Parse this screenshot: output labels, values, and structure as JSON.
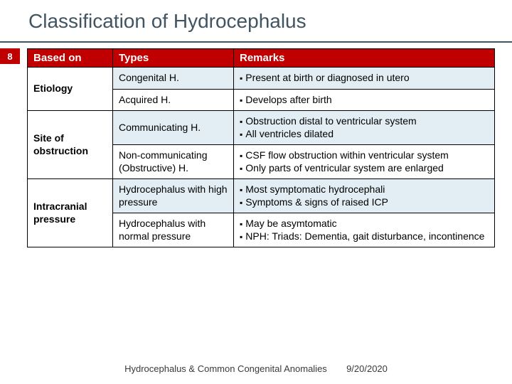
{
  "accent_color": "#c00000",
  "title": "Classification of Hydrocephalus",
  "slide_number": "8",
  "table": {
    "headers": [
      "Based on",
      "Types",
      "Remarks"
    ],
    "groups": [
      {
        "category": "Etiology",
        "rows": [
          {
            "type": "Congenital H.",
            "remarks": [
              "Present at birth or diagnosed in utero"
            ],
            "alt": true
          },
          {
            "type": "Acquired H.",
            "remarks": [
              "Develops after birth"
            ],
            "alt": false
          }
        ]
      },
      {
        "category": "Site of obstruction",
        "rows": [
          {
            "type": "Communicating H.",
            "remarks": [
              "Obstruction distal to    ventricular system",
              "All ventricles dilated"
            ],
            "alt": true
          },
          {
            "type": "Non-communicating (Obstructive) H.",
            "remarks": [
              "CSF flow obstruction within ventricular system",
              "Only parts of ventricular system are enlarged"
            ],
            "alt": false
          }
        ]
      },
      {
        "category": "Intracranial pressure",
        "rows": [
          {
            "type": "Hydrocephalus with high pressure",
            "remarks": [
              "Most symptomatic hydrocephali",
              "Symptoms & signs of raised ICP"
            ],
            "alt": true
          },
          {
            "type": "Hydrocephalus with normal pressure",
            "remarks": [
              "May be asymtomatic",
              "NPH: Triads: Dementia, gait disturbance, incontinence"
            ],
            "alt": false
          }
        ]
      }
    ]
  },
  "footer": {
    "left": "Hydrocephalus & Common Congenital Anomalies",
    "right": "9/20/2020"
  }
}
